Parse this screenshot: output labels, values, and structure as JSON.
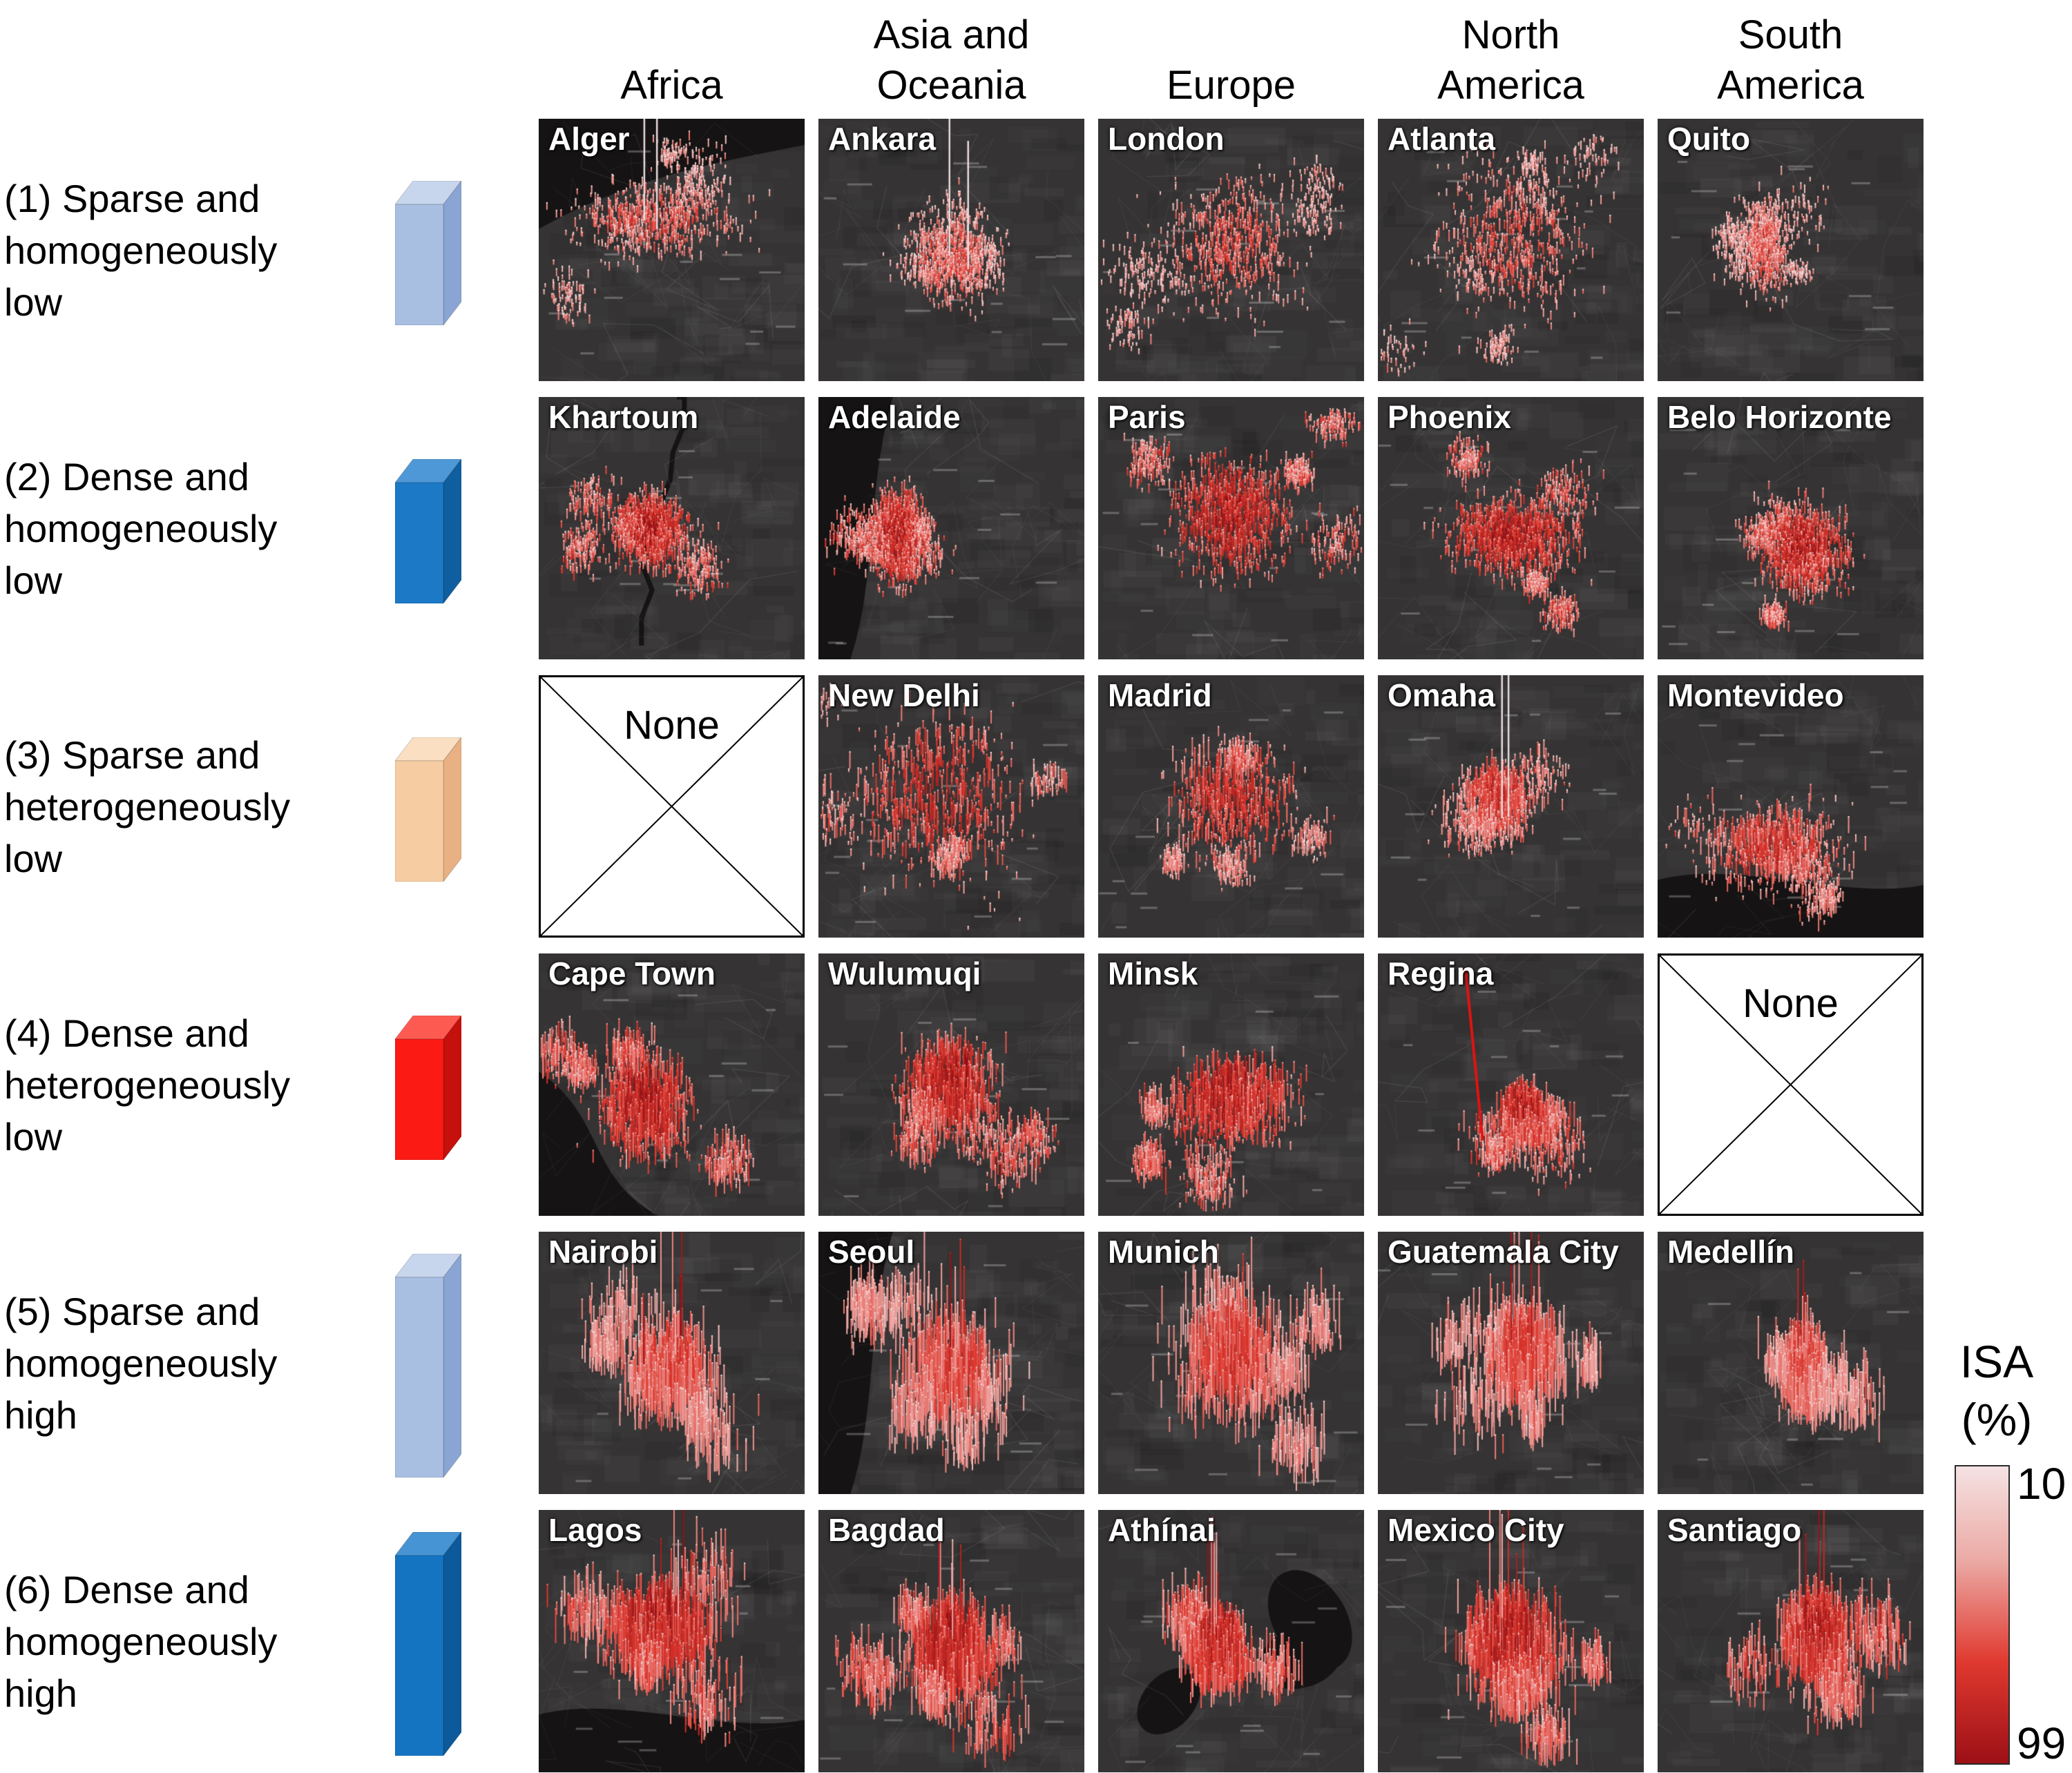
{
  "columns": [
    {
      "lines": [
        "Africa"
      ]
    },
    {
      "lines": [
        "Asia and",
        "Oceania"
      ]
    },
    {
      "lines": [
        "Europe"
      ]
    },
    {
      "lines": [
        "North",
        "America"
      ]
    },
    {
      "lines": [
        "South",
        "America"
      ]
    }
  ],
  "rows": [
    {
      "label_lines": [
        "(1) Sparse and",
        "homogeneously",
        "low"
      ],
      "icon": {
        "front": "#a9bfe2",
        "top": "#c8d6ed",
        "side": "#8aa5d3",
        "size": "short"
      },
      "cities": [
        "Alger",
        "Ankara",
        "London",
        "Atlanta",
        "Quito"
      ]
    },
    {
      "label_lines": [
        "(2) Dense and",
        "homogeneously",
        "low"
      ],
      "icon": {
        "front": "#1b79c6",
        "top": "#4e98d7",
        "side": "#0f5ea0",
        "size": "short"
      },
      "cities": [
        "Khartoum",
        "Adelaide",
        "Paris",
        "Phoenix",
        "Belo Horizonte"
      ]
    },
    {
      "label_lines": [
        "(3) Sparse and",
        "heterogeneously",
        "low"
      ],
      "icon": {
        "front": "#f6cda3",
        "top": "#fadfc3",
        "side": "#e9b183",
        "size": "short"
      },
      "cities": [
        null,
        "New Delhi",
        "Madrid",
        "Omaha",
        "Montevideo"
      ]
    },
    {
      "label_lines": [
        "(4) Dense and",
        "heterogeneously",
        "low"
      ],
      "icon": {
        "front": "#fc1a14",
        "top": "#fd5b52",
        "side": "#c5100c",
        "size": "short"
      },
      "cities": [
        "Cape Town",
        "Wulumuqi",
        "Minsk",
        "Regina",
        null
      ]
    },
    {
      "label_lines": [
        "(5) Sparse and",
        "homogeneously",
        "high"
      ],
      "icon": {
        "front": "#a9bfe2",
        "top": "#c8d6ed",
        "side": "#8aa5d3",
        "size": "tall"
      },
      "cities": [
        "Nairobi",
        "Seoul",
        "Munich",
        "Guatemala City",
        "Medellín"
      ]
    },
    {
      "label_lines": [
        "(6) Dense and",
        "homogeneously",
        "high"
      ],
      "icon": {
        "front": "#1474c2",
        "top": "#4694d4",
        "side": "#0c599b",
        "size": "tall"
      },
      "cities": [
        "Lagos",
        "Bagdad",
        "Athínai",
        "Mexico City",
        "Santiago"
      ]
    }
  ],
  "none_label": "None",
  "legend": {
    "title_lines": [
      "ISA",
      "(%)"
    ],
    "top_value": "10",
    "bottom_value": "99",
    "color_top": "#f5e2e3",
    "color_mid_light": "#eba9a4",
    "color_mid": "#e0392f",
    "color_bottom": "#9c1016"
  }
}
